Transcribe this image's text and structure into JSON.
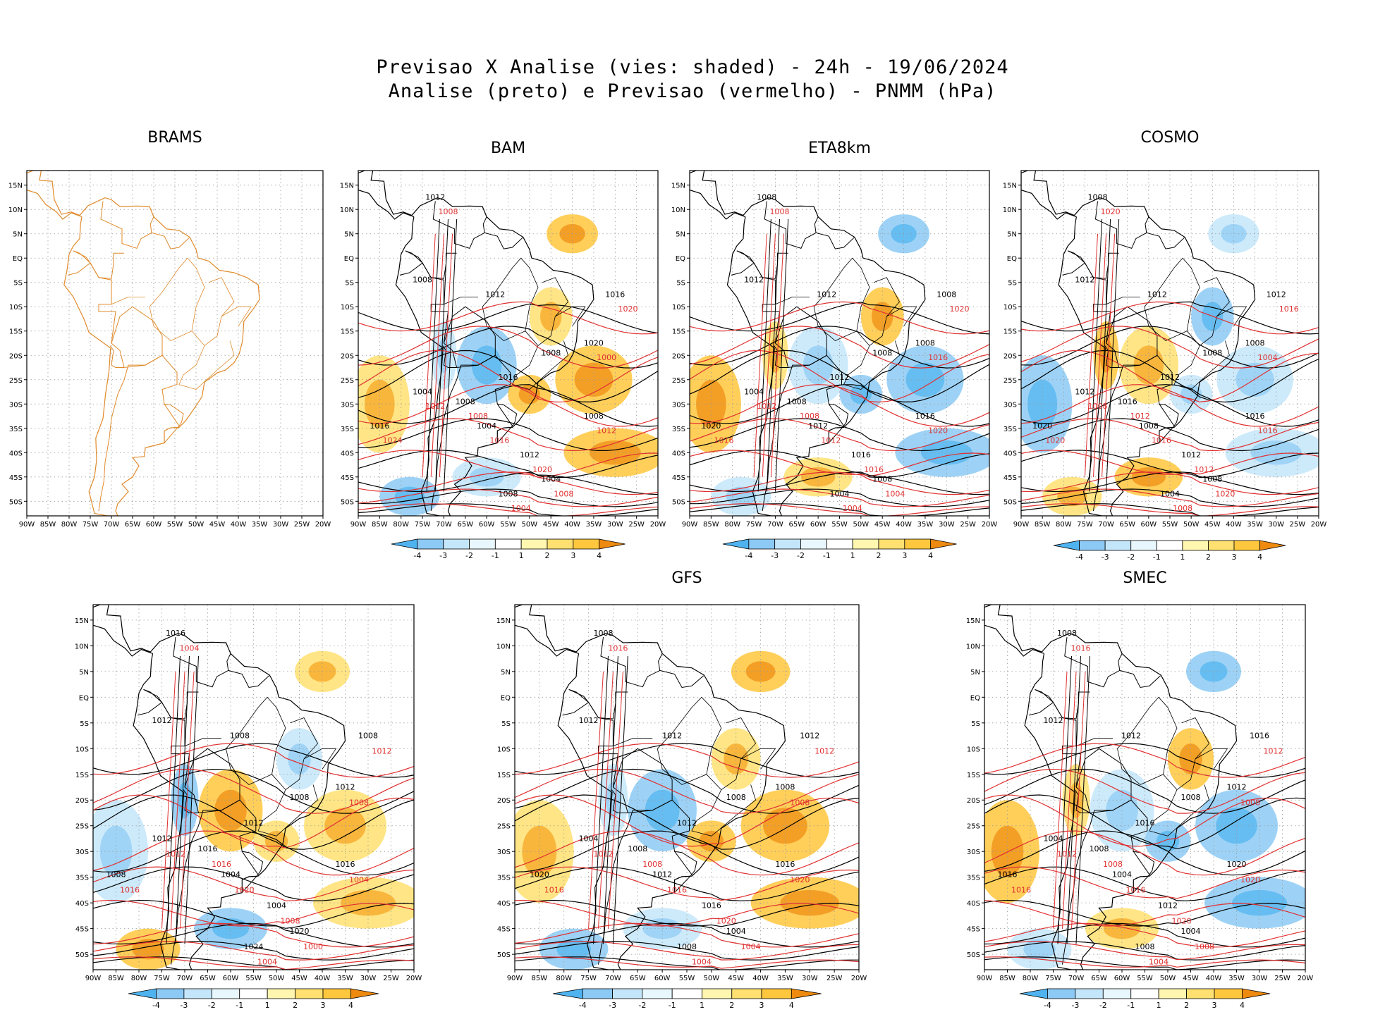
{
  "title_line1": "Previsao X Analise (vies: shaded) - 24h - 19/06/2024",
  "title_line2": "Analise (preto) e Previsao (vermelho) - PNMM (hPa)",
  "lat_labels": [
    "15N",
    "10N",
    "5N",
    "EQ",
    "5S",
    "10S",
    "15S",
    "20S",
    "25S",
    "30S",
    "35S",
    "40S",
    "45S",
    "50S"
  ],
  "lon_labels": [
    "90W",
    "85W",
    "80W",
    "75W",
    "70W",
    "65W",
    "60W",
    "55W",
    "50W",
    "45W",
    "40W",
    "35W",
    "30W",
    "25W",
    "20W"
  ],
  "colorbar": {
    "labels": [
      "-4",
      "-3",
      "-2",
      "-1",
      "1",
      "2",
      "3",
      "4"
    ],
    "colors": [
      "#4fb3f0",
      "#8ccaf5",
      "#c4e6fa",
      "#e8f7fd",
      "#ffffff",
      "#fff6b0",
      "#ffe070",
      "#ffc73d",
      "#f7a21c",
      "#ee8a10"
    ]
  },
  "line_colors": {
    "analysis": "#000000",
    "forecast": "#e03030",
    "coast": "#e08a2a"
  },
  "panels": [
    {
      "id": "brams",
      "name": "BRAMS",
      "has_colorbar": false,
      "black_labels": [],
      "red_labels": []
    },
    {
      "id": "bam",
      "name": "BAM",
      "has_colorbar": true,
      "black_labels": [
        "1012",
        "1008",
        "1012",
        "1008",
        "1016",
        "1008",
        "1004",
        "1004",
        "1012",
        "1016",
        "1008",
        "1004",
        "1008",
        "1020",
        "1016"
      ],
      "red_labels": [
        "1008",
        "1012",
        "1016",
        "1020",
        "1024",
        "1012",
        "1008",
        "1004",
        "1000",
        "1020",
        "1008"
      ]
    },
    {
      "id": "eta8km",
      "name": "ETA8km",
      "has_colorbar": true,
      "black_labels": [
        "1008",
        "1012",
        "1012",
        "1008",
        "1012",
        "1008",
        "1004",
        "1012",
        "1016",
        "1020",
        "1016",
        "1008",
        "1004",
        "1008",
        "1008"
      ],
      "red_labels": [
        "1008",
        "1012",
        "1012",
        "1016",
        "1016",
        "1020",
        "1004",
        "1004",
        "1016",
        "1020",
        "1008"
      ]
    },
    {
      "id": "cosmo",
      "name": "COSMO",
      "has_colorbar": true,
      "black_labels": [
        "1008",
        "1012",
        "1012",
        "1008",
        "1012",
        "1016",
        "1012",
        "1008",
        "1012",
        "1020",
        "1016",
        "1008",
        "1004",
        "1008",
        "1012"
      ],
      "red_labels": [
        "1012",
        "1008",
        "1016",
        "1012",
        "1020",
        "1016",
        "1020",
        "1008",
        "1004",
        "1016",
        "1020"
      ]
    },
    {
      "id": "panel5",
      "name": "",
      "has_colorbar": true,
      "black_labels": [
        "1016",
        "1012",
        "1008",
        "1008",
        "1012",
        "1016",
        "1012",
        "1004",
        "1004",
        "1008",
        "1016",
        "1020",
        "1024",
        "1012",
        "1008"
      ],
      "red_labels": [
        "1016",
        "1012",
        "1020",
        "1008",
        "1016",
        "1004",
        "1000",
        "1004",
        "1008",
        "1012",
        "1004"
      ]
    },
    {
      "id": "gfs",
      "name": "GFS",
      "has_colorbar": true,
      "black_labels": [
        "1008",
        "1012",
        "1012",
        "1008",
        "1012",
        "1008",
        "1004",
        "1012",
        "1016",
        "1020",
        "1016",
        "1004",
        "1008",
        "1008",
        "1012"
      ],
      "red_labels": [
        "1008",
        "1012",
        "1016",
        "1020",
        "1016",
        "1020",
        "1004",
        "1004",
        "1008",
        "1012",
        "1016"
      ]
    },
    {
      "id": "smec",
      "name": "SMEC",
      "has_colorbar": true,
      "black_labels": [
        "1008",
        "1012",
        "1012",
        "1008",
        "1016",
        "1008",
        "1004",
        "1004",
        "1012",
        "1016",
        "1020",
        "1004",
        "1008",
        "1012",
        "1016"
      ],
      "red_labels": [
        "1008",
        "1012",
        "1016",
        "1020",
        "1016",
        "1020",
        "1008",
        "1004",
        "1008",
        "1012",
        "1016"
      ]
    }
  ]
}
